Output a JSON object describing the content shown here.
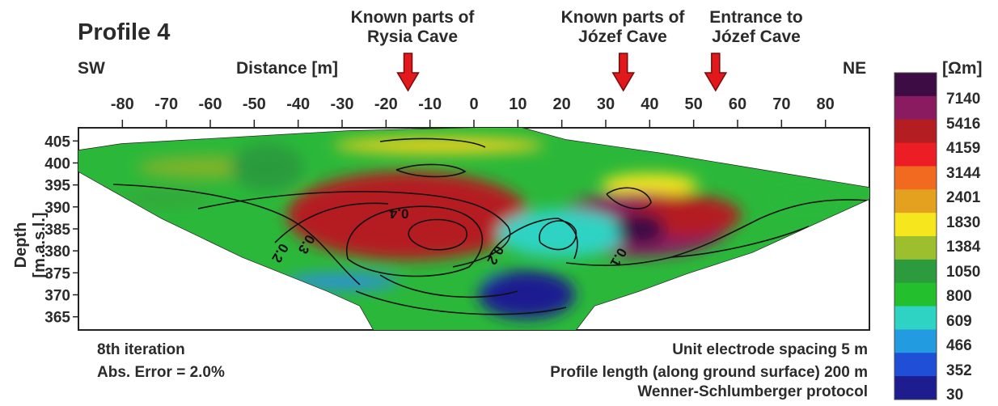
{
  "chart_data": {
    "type": "heatmap",
    "title": "Profile 4",
    "left_end": "SW",
    "right_end": "NE",
    "xlabel": "Distance [m]",
    "ylabel": "Depth [m.a.s.l.]",
    "xlim": [
      -90,
      90
    ],
    "ylim": [
      362,
      408
    ],
    "x_ticks": [
      "-80",
      "-70",
      "-60",
      "-50",
      "-40",
      "-30",
      "-20",
      "-10",
      "0",
      "10",
      "20",
      "30",
      "40",
      "50",
      "60",
      "70",
      "80"
    ],
    "y_ticks": [
      "405",
      "400",
      "395",
      "390",
      "385",
      "380",
      "375",
      "370",
      "365"
    ],
    "annotations": [
      {
        "lines": [
          "Known parts of",
          "Rysia Cave"
        ],
        "x": -15
      },
      {
        "lines": [
          "Known parts of",
          "Józef Cave"
        ],
        "x": 34
      },
      {
        "lines": [
          "Entrance to",
          "Józef Cave"
        ],
        "x": 55
      }
    ],
    "contour_labels": [
      {
        "text": "0.4",
        "x": -17,
        "y": 389.5
      },
      {
        "text": "0.3",
        "x": -39,
        "y": 382
      },
      {
        "text": "0.2",
        "x": -45,
        "y": 380
      },
      {
        "text": "0.2",
        "x": 4,
        "y": 379.5
      },
      {
        "text": "0.1",
        "x": 32,
        "y": 379
      }
    ],
    "colorbar": {
      "unit": "[Ωm]",
      "labels": [
        "7140",
        "5416",
        "4159",
        "3144",
        "2401",
        "1830",
        "1384",
        "1050",
        "800",
        "609",
        "466",
        "352",
        "30"
      ],
      "colors": [
        "#3e0c44",
        "#8a1b61",
        "#b41d22",
        "#ec1d24",
        "#f26a1f",
        "#e4a11f",
        "#f6e61e",
        "#9dbf2e",
        "#2b9b3e",
        "#23bf2c",
        "#2fd3c3",
        "#239be0",
        "#1f4fd6",
        "#1d1d90"
      ]
    },
    "anomalies": [
      {
        "x": -15,
        "y": 388,
        "value": 4159
      },
      {
        "x": 38,
        "y": 386,
        "value": 5416
      },
      {
        "x": 48,
        "y": 388,
        "value": 4159
      },
      {
        "x": 10,
        "y": 372,
        "value": 352
      },
      {
        "x": 20,
        "y": 384,
        "value": 466
      },
      {
        "x": -47,
        "y": 399,
        "value": 800
      }
    ]
  },
  "footer": {
    "iteration": "8th iteration",
    "abs_error": "Abs. Error = 2.0%",
    "spacing": "Unit electrode spacing 5 m",
    "length": "Profile length (along ground surface) 200 m",
    "protocol": "Wenner-Schlumberger protocol"
  }
}
